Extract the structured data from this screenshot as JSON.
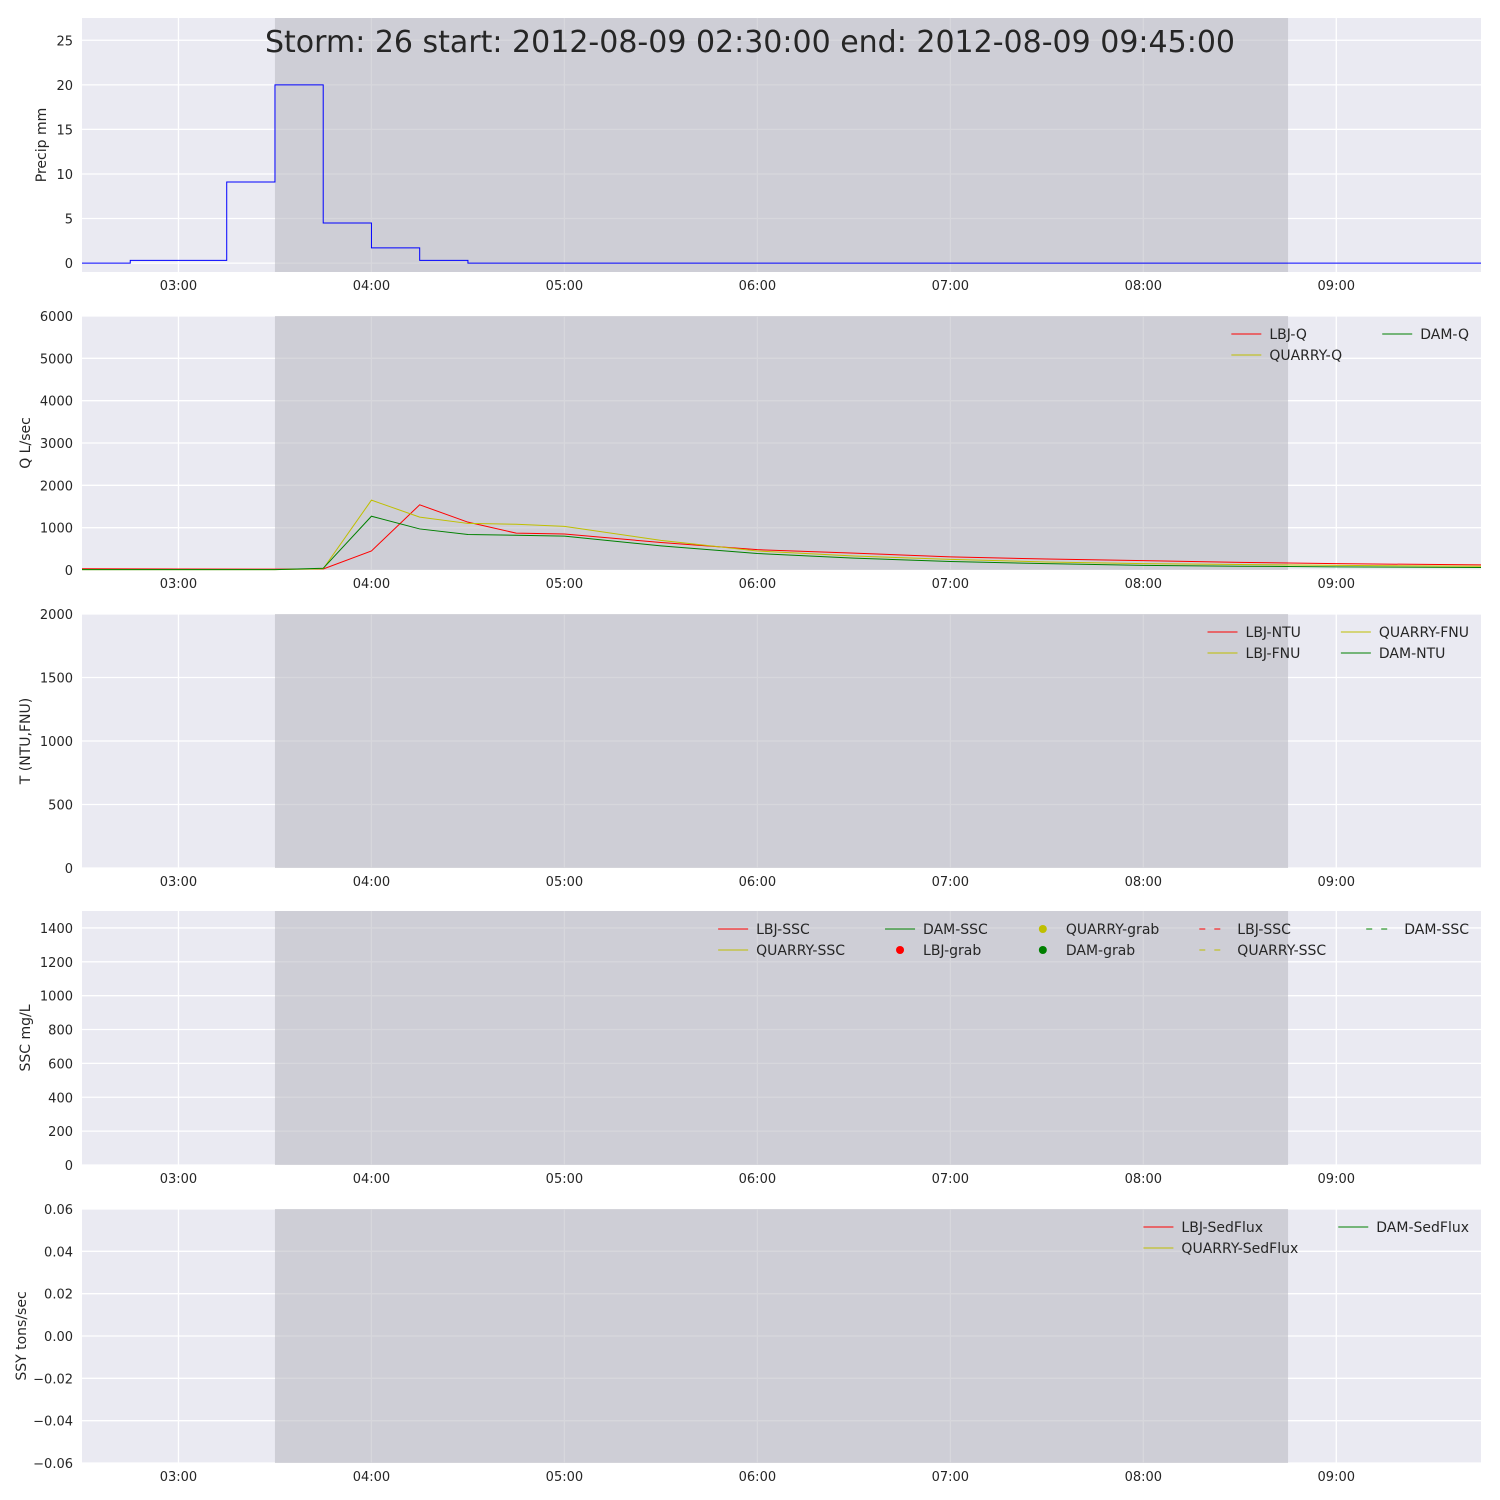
{
  "title": "Storm: 26 start: 2012-08-09 02:30:00 end: 2012-08-09 09:45:00",
  "colors": {
    "axes_bg": "#eaeaf2",
    "grid": "#ffffff",
    "shade": "#b6b6bf",
    "precip": "#0000ff",
    "lbj": "#ff0000",
    "quarry": "#bfbf00",
    "dam": "#008000"
  },
  "chart_data": [
    {
      "type": "line",
      "name": "precip",
      "ylabel": "Precip mm",
      "xlim": [
        "2012-08-09 02:30",
        "2012-08-09 09:45"
      ],
      "ylim": [
        -1,
        27.5
      ],
      "yticks": [
        0,
        5,
        10,
        15,
        20,
        25
      ],
      "ytick_labels": [
        "0",
        "5",
        "10",
        "15",
        "20",
        "25"
      ],
      "xticks": [
        "03:00",
        "04:00",
        "05:00",
        "06:00",
        "07:00",
        "08:00",
        "09:00"
      ],
      "shade": [
        "2012-08-09 03:30",
        "2012-08-09 08:45"
      ],
      "grid": true,
      "legend_position": "none",
      "series": [
        {
          "color_key": "precip",
          "drawstyle": "steps-post",
          "x": [
            "02:30",
            "02:45",
            "03:00",
            "03:15",
            "03:30",
            "03:45",
            "04:00",
            "04:15",
            "04:30",
            "04:45",
            "05:00",
            "05:30",
            "06:00",
            "07:00",
            "08:00",
            "09:00",
            "09:45"
          ],
          "values": [
            0,
            0.3,
            0.3,
            9.1,
            20,
            4.5,
            1.7,
            0.3,
            0,
            0,
            0,
            0,
            0,
            0,
            0,
            0,
            0
          ]
        }
      ]
    },
    {
      "type": "line",
      "name": "discharge",
      "ylabel": "Q L/sec",
      "xlim": [
        "2012-08-09 02:30",
        "2012-08-09 09:45"
      ],
      "ylim": [
        0,
        6000
      ],
      "yticks": [
        0,
        1000,
        2000,
        3000,
        4000,
        5000,
        6000
      ],
      "ytick_labels": [
        "0",
        "1000",
        "2000",
        "3000",
        "4000",
        "5000",
        "6000"
      ],
      "xticks": [
        "03:00",
        "04:00",
        "05:00",
        "06:00",
        "07:00",
        "08:00",
        "09:00"
      ],
      "shade": [
        "2012-08-09 03:30",
        "2012-08-09 08:45"
      ],
      "grid": true,
      "legend_position": "top-right",
      "legend_columns": 2,
      "series": [
        {
          "name": "LBJ-Q",
          "color_key": "lbj",
          "x": [
            "02:30",
            "03:00",
            "03:30",
            "03:45",
            "04:00",
            "04:15",
            "04:30",
            "04:45",
            "05:00",
            "05:30",
            "06:00",
            "06:30",
            "07:00",
            "07:30",
            "08:00",
            "08:30",
            "09:00",
            "09:45"
          ],
          "values": [
            30,
            25,
            20,
            25,
            450,
            1540,
            1130,
            870,
            850,
            650,
            480,
            400,
            310,
            260,
            220,
            180,
            150,
            120
          ]
        },
        {
          "name": "QUARRY-Q",
          "color_key": "quarry",
          "x": [
            "02:30",
            "03:00",
            "03:30",
            "03:45",
            "04:00",
            "04:15",
            "04:30",
            "04:45",
            "05:00",
            "05:30",
            "06:00",
            "06:30",
            "07:00",
            "07:30",
            "08:00",
            "08:30",
            "09:00",
            "09:45"
          ],
          "values": [
            10,
            10,
            10,
            30,
            1650,
            1250,
            1100,
            1080,
            1030,
            700,
            450,
            330,
            250,
            190,
            150,
            130,
            110,
            90
          ]
        },
        {
          "name": "DAM-Q",
          "color_key": "dam",
          "x": [
            "02:30",
            "03:00",
            "03:30",
            "03:45",
            "04:00",
            "04:15",
            "04:30",
            "04:45",
            "05:00",
            "05:30",
            "06:00",
            "06:30",
            "07:00",
            "07:30",
            "08:00",
            "08:30",
            "09:00",
            "09:45"
          ],
          "values": [
            10,
            10,
            10,
            40,
            1270,
            970,
            840,
            820,
            800,
            570,
            390,
            280,
            200,
            150,
            110,
            90,
            75,
            60
          ]
        }
      ]
    },
    {
      "type": "line",
      "name": "turbidity",
      "ylabel": "T (NTU,FNU)",
      "xlim": [
        "2012-08-09 02:30",
        "2012-08-09 09:45"
      ],
      "ylim": [
        0,
        2000
      ],
      "yticks": [
        0,
        500,
        1000,
        1500,
        2000
      ],
      "ytick_labels": [
        "0",
        "500",
        "1000",
        "1500",
        "2000"
      ],
      "xticks": [
        "03:00",
        "04:00",
        "05:00",
        "06:00",
        "07:00",
        "08:00",
        "09:00"
      ],
      "shade": [
        "2012-08-09 03:30",
        "2012-08-09 08:45"
      ],
      "grid": true,
      "legend_position": "top-right",
      "legend_columns": 3,
      "series": [
        {
          "name": "LBJ-NTU",
          "color_key": "lbj",
          "x": [],
          "values": []
        },
        {
          "name": "LBJ-FNU",
          "color_key": "quarry",
          "x": [],
          "values": []
        },
        {
          "name": "QUARRY-FNU",
          "color_key": "quarry",
          "x": [],
          "values": []
        },
        {
          "name": "DAM-NTU",
          "color_key": "dam",
          "x": [],
          "values": []
        }
      ]
    },
    {
      "type": "line",
      "name": "ssc",
      "ylabel": "SSC mg/L",
      "xlim": [
        "2012-08-09 02:30",
        "2012-08-09 09:45"
      ],
      "ylim": [
        0,
        1500
      ],
      "yticks": [
        0,
        200,
        400,
        600,
        800,
        1000,
        1200,
        1400
      ],
      "ytick_labels": [
        "0",
        "200",
        "400",
        "600",
        "800",
        "1000",
        "1200",
        "1400"
      ],
      "xticks": [
        "03:00",
        "04:00",
        "05:00",
        "06:00",
        "07:00",
        "08:00",
        "09:00"
      ],
      "shade": [
        "2012-08-09 03:30",
        "2012-08-09 08:45"
      ],
      "grid": true,
      "legend_position": "top-right",
      "legend_columns": 5,
      "series": [
        {
          "name": "LBJ-SSC",
          "color_key": "lbj",
          "marker": "line",
          "x": [],
          "values": []
        },
        {
          "name": "QUARRY-SSC",
          "color_key": "quarry",
          "marker": "line",
          "x": [],
          "values": []
        },
        {
          "name": "DAM-SSC",
          "color_key": "dam",
          "marker": "line",
          "x": [],
          "values": []
        },
        {
          "name": "LBJ-grab",
          "color_key": "lbj",
          "marker": "dot",
          "x": [],
          "values": []
        },
        {
          "name": "QUARRY-grab",
          "color_key": "quarry",
          "marker": "dot",
          "x": [],
          "values": []
        },
        {
          "name": "DAM-grab",
          "color_key": "dam",
          "marker": "dot",
          "x": [],
          "values": []
        },
        {
          "name": "LBJ-SSC",
          "color_key": "lbj",
          "marker": "dashed",
          "x": [],
          "values": []
        },
        {
          "name": "QUARRY-SSC",
          "color_key": "quarry",
          "marker": "dashed",
          "x": [],
          "values": []
        },
        {
          "name": "DAM-SSC",
          "color_key": "dam",
          "marker": "dashed",
          "x": [],
          "values": []
        }
      ]
    },
    {
      "type": "line",
      "name": "sediment-flux",
      "ylabel": "SSY tons/sec",
      "xlim": [
        "2012-08-09 02:30",
        "2012-08-09 09:45"
      ],
      "ylim": [
        -0.06,
        0.06
      ],
      "yticks": [
        -0.06,
        -0.04,
        -0.02,
        0,
        0.02,
        0.04,
        0.06
      ],
      "ytick_labels": [
        "−0.06",
        "−0.04",
        "−0.02",
        "0.00",
        "0.02",
        "0.04",
        "0.06"
      ],
      "xticks": [
        "03:00",
        "04:00",
        "05:00",
        "06:00",
        "07:00",
        "08:00",
        "09:00"
      ],
      "shade": [
        "2012-08-09 03:30",
        "2012-08-09 08:45"
      ],
      "grid": true,
      "legend_position": "top-right",
      "legend_columns": 2,
      "series": [
        {
          "name": "LBJ-SedFlux",
          "color_key": "lbj",
          "x": [],
          "values": []
        },
        {
          "name": "QUARRY-SedFlux",
          "color_key": "quarry",
          "x": [],
          "values": []
        },
        {
          "name": "DAM-SedFlux",
          "color_key": "dam",
          "x": [],
          "values": []
        }
      ]
    }
  ]
}
